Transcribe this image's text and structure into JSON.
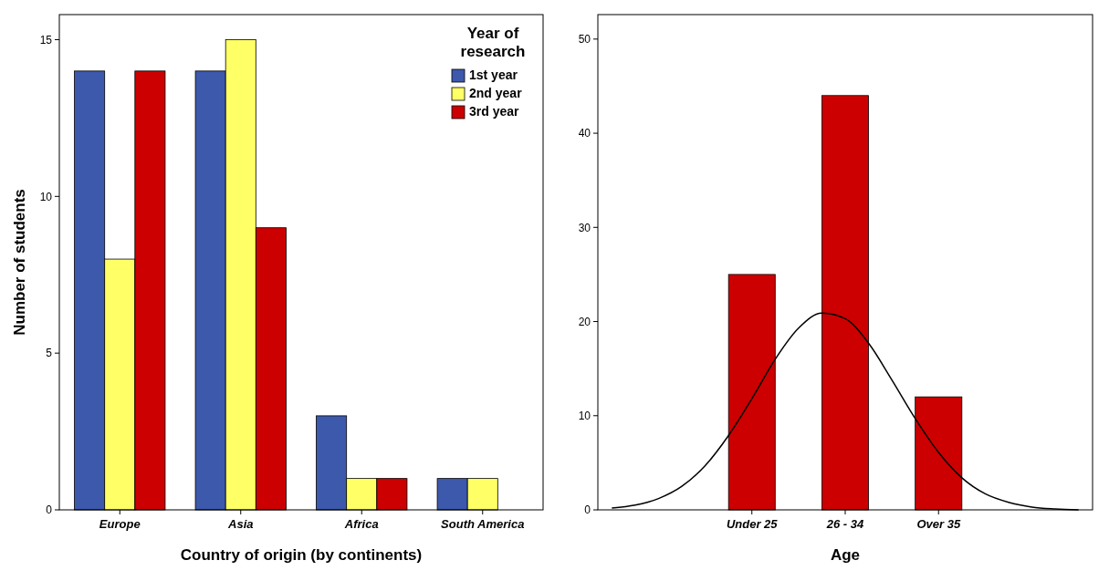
{
  "chart_data": [
    {
      "type": "bar",
      "xlabel": "Country of origin (by continents)",
      "ylabel": "Number of students",
      "legend_title": "Year of research",
      "legend": "top right",
      "categories": [
        "Europe",
        "Asia",
        "Africa",
        "South America"
      ],
      "ylim": [
        0,
        15.8
      ],
      "yticks": [
        0,
        5,
        10,
        15
      ],
      "series": [
        {
          "name": "1st year",
          "color": "#3d59ab",
          "values": [
            14,
            14,
            3,
            1
          ]
        },
        {
          "name": "2nd year",
          "color": "#ffff66",
          "values": [
            8,
            15,
            1,
            1
          ]
        },
        {
          "name": "3rd year",
          "color": "#cc0000",
          "values": [
            14,
            9,
            1,
            null
          ]
        }
      ]
    },
    {
      "type": "bar",
      "xlabel": "Age",
      "categories": [
        null,
        null,
        null,
        null,
        null,
        null,
        "Under 25",
        null,
        null,
        null,
        "26 - 34",
        null,
        null,
        null,
        "Over 35",
        null,
        null,
        null,
        null,
        null,
        null
      ],
      "ylim": [
        0,
        52.6
      ],
      "yticks": [
        0,
        10,
        20,
        30,
        40,
        50
      ],
      "series": [
        {
          "color": "#cc0000",
          "values": [
            null,
            null,
            null,
            null,
            null,
            null,
            25,
            null,
            null,
            null,
            44,
            null,
            null,
            null,
            12,
            null,
            null,
            null,
            null,
            null,
            null
          ]
        },
        {
          "type": "line",
          "color": "#000000",
          "values": [
            0.2,
            0.5,
            1.2,
            2.5,
            4.7,
            7.9,
            11.8,
            16,
            19.3,
            20.9,
            20.3,
            17.7,
            13.8,
            9.7,
            6.1,
            3.4,
            1.7,
            0.8,
            0.3,
            0.1,
            0
          ]
        }
      ]
    }
  ]
}
